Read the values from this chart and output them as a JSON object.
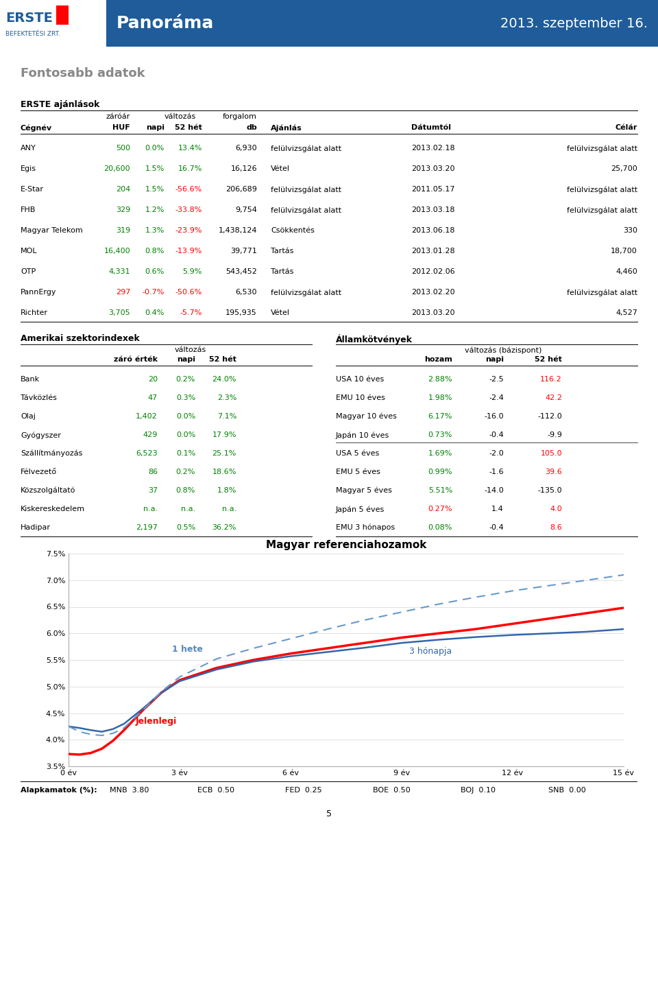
{
  "header_title": "Panoráma",
  "header_date": "2013. szeptember 16.",
  "header_bg": "#1F5C99",
  "section1_title": "Fontosabb adatok",
  "section2_title": "ERSTE ajánlások",
  "erste_rows": [
    [
      "ANY",
      "500",
      "0.0%",
      "13.4%",
      "6,930",
      "felülvizsgálat alatt",
      "2013.02.18",
      "felülvizsgálat alatt"
    ],
    [
      "Egis",
      "20,600",
      "1.5%",
      "16.7%",
      "16,126",
      "Vétel",
      "2013.03.20",
      "25,700"
    ],
    [
      "E-Star",
      "204",
      "1.5%",
      "-56.6%",
      "206,689",
      "felülvizsgálat alatt",
      "2011.05.17",
      "felülvizsgálat alatt"
    ],
    [
      "FHB",
      "329",
      "1.2%",
      "-33.8%",
      "9,754",
      "felülvizsgálat alatt",
      "2013.03.18",
      "felülvizsgálat alatt"
    ],
    [
      "Magyar Telekom",
      "319",
      "1.3%",
      "-23.9%",
      "1,438,124",
      "Csökkentés",
      "2013.06.18",
      "330"
    ],
    [
      "MOL",
      "16,400",
      "0.8%",
      "-13.9%",
      "39,771",
      "Tartás",
      "2013.01.28",
      "18,700"
    ],
    [
      "OTP",
      "4,331",
      "0.6%",
      "5.9%",
      "543,452",
      "Tartás",
      "2012.02.06",
      "4,460"
    ],
    [
      "PannErgy",
      "297",
      "-0.7%",
      "-50.6%",
      "6,530",
      "felülvizsgálat alatt",
      "2013.02.20",
      "felülvizsgálat alatt"
    ],
    [
      "Richter",
      "3,705",
      "0.4%",
      "-5.7%",
      "195,935",
      "Vétel",
      "2013.03.20",
      "4,527"
    ]
  ],
  "erste_napi_colors": [
    "green",
    "green",
    "green",
    "green",
    "green",
    "green",
    "green",
    "red",
    "green"
  ],
  "erste_52het_colors": [
    "green",
    "green",
    "red",
    "red",
    "red",
    "red",
    "green",
    "red",
    "red"
  ],
  "erste_zaroar_colors": [
    "green",
    "green",
    "green",
    "green",
    "green",
    "green",
    "green",
    "red",
    "green"
  ],
  "amerikai_title": "Amerikai szektorindexek",
  "amerikai_rows": [
    [
      "Bank",
      "20",
      "0.2%",
      "24.0%"
    ],
    [
      "Távközlés",
      "47",
      "0.3%",
      "2.3%"
    ],
    [
      "Olaj",
      "1,402",
      "0.0%",
      "7.1%"
    ],
    [
      "Gyógyszer",
      "429",
      "0.0%",
      "17.9%"
    ],
    [
      "Szállítmányozás",
      "6,523",
      "0.1%",
      "25.1%"
    ],
    [
      "Félvezető",
      "86",
      "0.2%",
      "18.6%"
    ],
    [
      "Közszolgáltató",
      "37",
      "0.8%",
      "1.8%"
    ],
    [
      "Kiskereskedelem",
      "n.a.",
      "n.a.",
      "n.a."
    ],
    [
      "Hadipar",
      "2,197",
      "0.5%",
      "36.2%"
    ]
  ],
  "am_zaroertek_colors": [
    "green",
    "green",
    "green",
    "green",
    "green",
    "green",
    "green",
    "green",
    "green"
  ],
  "am_napi_colors": [
    "green",
    "green",
    "green",
    "green",
    "green",
    "green",
    "green",
    "green",
    "green"
  ],
  "am_52het_colors": [
    "green",
    "green",
    "green",
    "green",
    "green",
    "green",
    "green",
    "green",
    "green"
  ],
  "allam_title": "Államkötvények",
  "allam_rows": [
    [
      "USA 10 éves",
      "2.88%",
      "-2.5",
      "116.2"
    ],
    [
      "EMU 10 éves",
      "1.98%",
      "-2.4",
      "42.2"
    ],
    [
      "Magyar 10 éves",
      "6.17%",
      "-16.0",
      "-112.0"
    ],
    [
      "Japán 10 éves",
      "0.73%",
      "-0.4",
      "-9.9"
    ],
    [
      "USA 5 éves",
      "1.69%",
      "-2.0",
      "105.0"
    ],
    [
      "EMU 5 éves",
      "0.99%",
      "-1.6",
      "39.6"
    ],
    [
      "Magyar 5 éves",
      "5.51%",
      "-14.0",
      "-135.0"
    ],
    [
      "Japán 5 éves",
      "0.27%",
      "1.4",
      "4.0"
    ],
    [
      "EMU 3 hónapos",
      "0.08%",
      "-0.4",
      "8.6"
    ]
  ],
  "allam_hozam_colors": [
    "green",
    "green",
    "green",
    "green",
    "green",
    "green",
    "green",
    "red",
    "green"
  ],
  "allam_52het_colors": [
    "red",
    "red",
    "black",
    "black",
    "red",
    "red",
    "black",
    "red",
    "red"
  ],
  "chart_title": "Magyar referenciahozamok",
  "chart_xlabel_ticks": [
    "0 év",
    "3 év",
    "6 év",
    "9 év",
    "12 év",
    "15 év"
  ],
  "chart_ylabel_ticks": [
    "3.5%",
    "4.0%",
    "4.5%",
    "5.0%",
    "5.5%",
    "6.0%",
    "6.5%",
    "7.0%",
    "7.5%"
  ],
  "chart_ylim": [
    3.5,
    7.5
  ],
  "chart_xlim": [
    0,
    15
  ],
  "line_jelenlegi_x": [
    0,
    0.3,
    0.6,
    0.9,
    1.2,
    1.5,
    2.0,
    2.5,
    3.0,
    4.0,
    5.0,
    6.0,
    7.0,
    8.0,
    9.0,
    10.0,
    11.0,
    12.0,
    13.0,
    14.0,
    15.0
  ],
  "line_jelenlegi_y": [
    3.73,
    3.72,
    3.75,
    3.83,
    3.98,
    4.18,
    4.55,
    4.88,
    5.12,
    5.35,
    5.5,
    5.62,
    5.72,
    5.82,
    5.92,
    6.0,
    6.08,
    6.18,
    6.28,
    6.38,
    6.48
  ],
  "line_3honap_x": [
    0,
    0.3,
    0.6,
    0.9,
    1.2,
    1.5,
    2.0,
    2.5,
    3.0,
    4.0,
    5.0,
    6.0,
    7.0,
    8.0,
    9.0,
    10.0,
    11.0,
    12.0,
    13.0,
    14.0,
    15.0
  ],
  "line_3honap_y": [
    4.25,
    4.22,
    4.18,
    4.15,
    4.2,
    4.3,
    4.58,
    4.88,
    5.1,
    5.32,
    5.47,
    5.57,
    5.65,
    5.73,
    5.82,
    5.88,
    5.93,
    5.97,
    6.0,
    6.03,
    6.08
  ],
  "line_1hete_x": [
    0,
    0.3,
    0.6,
    0.9,
    1.2,
    1.5,
    2.0,
    2.5,
    3.0,
    4.0,
    5.0,
    6.0,
    7.0,
    8.0,
    9.0,
    10.0,
    11.0,
    12.0,
    13.0,
    14.0,
    15.0
  ],
  "line_1hete_y": [
    4.25,
    4.15,
    4.1,
    4.08,
    4.12,
    4.22,
    4.55,
    4.9,
    5.18,
    5.52,
    5.72,
    5.9,
    6.08,
    6.25,
    6.4,
    6.55,
    6.68,
    6.8,
    6.9,
    7.0,
    7.1
  ],
  "alapkamatok_title": "Alapkamatok (%):",
  "alapkamatok": [
    [
      "MNB",
      "3.80"
    ],
    [
      "ECB",
      "0.50"
    ],
    [
      "FED",
      "0.25"
    ],
    [
      "BOE",
      "0.50"
    ],
    [
      "BOJ",
      "0.10"
    ],
    [
      "SNB",
      "0.00"
    ]
  ],
  "footer_page": "5"
}
